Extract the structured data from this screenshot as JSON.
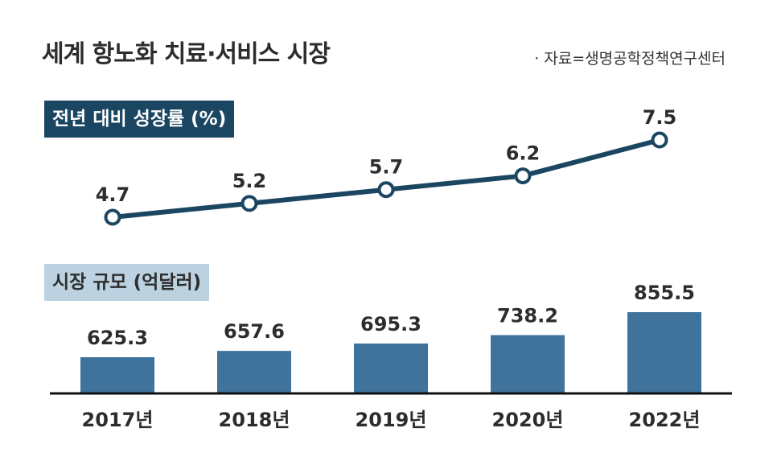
{
  "title": "세계 항노화 치료·서비스 시장",
  "source": "· 자료=생명공학정책연구센터",
  "chart_data": [
    {
      "type": "line",
      "title": "전년 대비 성장률 (%)",
      "categories": [
        "2017년",
        "2018년",
        "2019년",
        "2020년",
        "2022년"
      ],
      "values": [
        4.7,
        5.2,
        5.7,
        6.2,
        7.5
      ],
      "value_labels": [
        "4.7",
        "5.2",
        "5.7",
        "6.2",
        "7.5"
      ],
      "color": "#1b4661"
    },
    {
      "type": "bar",
      "title": "시장 규모 (억달러)",
      "categories": [
        "2017년",
        "2018년",
        "2019년",
        "2020년",
        "2022년"
      ],
      "values": [
        625.3,
        657.6,
        695.3,
        738.2,
        855.5
      ],
      "value_labels": [
        "625.3",
        "657.6",
        "695.3",
        "738.2",
        "855.5"
      ],
      "color": "#3f739c"
    }
  ]
}
